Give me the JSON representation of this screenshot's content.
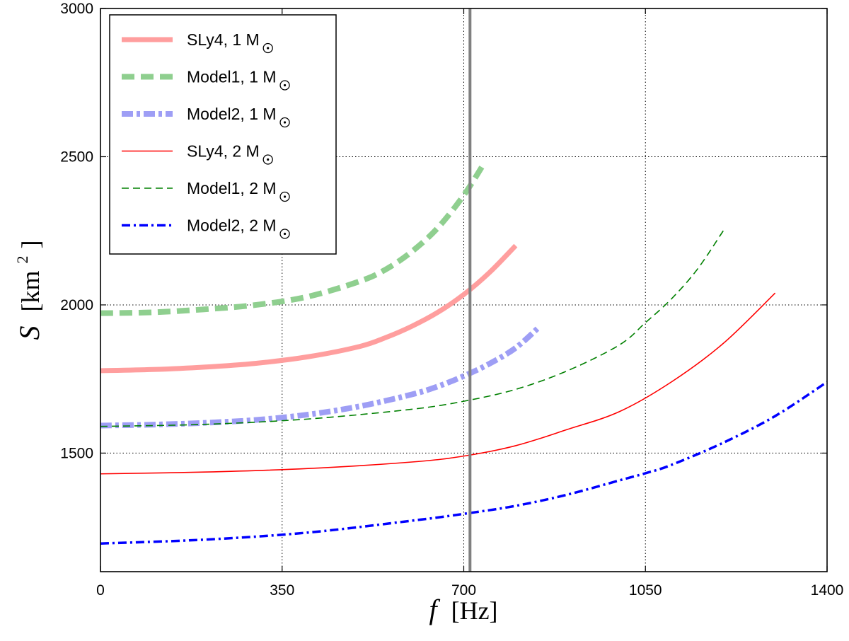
{
  "chart_data": {
    "type": "line",
    "xlabel": "f [Hz]",
    "ylabel": "S [km2]",
    "xlabel_parts": {
      "symbol": "f",
      "unit": "[Hz]"
    },
    "ylabel_parts": {
      "symbol": "S",
      "open": "[km",
      "exp": "2",
      "close": "]"
    },
    "xlim": [
      0,
      1400
    ],
    "ylim": [
      1100,
      3000
    ],
    "xticks": [
      0,
      350,
      700,
      1050,
      1400
    ],
    "yticks": [
      1500,
      2000,
      2500,
      3000
    ],
    "xtick_labels": [
      "0",
      "350",
      "700",
      "1050",
      "1400"
    ],
    "ytick_labels": [
      "1500",
      "2000",
      "2500",
      "3000"
    ],
    "grid": true,
    "legend_position": "top-left",
    "vline": {
      "x": 712,
      "color": "#808080"
    },
    "series": [
      {
        "name": "SLy4, 1 M⊙",
        "label": "SLy4, 1 M",
        "color": "#ff9e9e",
        "style": "thick-solid",
        "x": [
          0,
          100,
          200,
          300,
          400,
          500,
          550,
          600,
          650,
          700,
          750,
          800
        ],
        "y": [
          1778,
          1782,
          1790,
          1803,
          1825,
          1860,
          1890,
          1928,
          1975,
          2035,
          2110,
          2200
        ]
      },
      {
        "name": "Model1, 1 M⊙",
        "label": "Model1, 1 M",
        "color": "#8fcf8f",
        "style": "thick-dashed",
        "x": [
          0,
          100,
          200,
          300,
          400,
          500,
          550,
          600,
          650,
          700,
          740
        ],
        "y": [
          1972,
          1975,
          1985,
          2000,
          2028,
          2080,
          2120,
          2180,
          2260,
          2370,
          2480
        ]
      },
      {
        "name": "Model2, 1 M⊙",
        "label": "Model2, 1 M",
        "color": "#9e9ef5",
        "style": "thick-dashdot",
        "x": [
          0,
          100,
          200,
          300,
          400,
          500,
          600,
          650,
          700,
          750,
          800,
          845
        ],
        "y": [
          1593,
          1596,
          1602,
          1612,
          1630,
          1658,
          1698,
          1725,
          1760,
          1802,
          1855,
          1925
        ]
      },
      {
        "name": "SLy4, 2 M⊙",
        "label": "SLy4, 2 M",
        "color": "#ff0000",
        "style": "thin-solid",
        "x": [
          0,
          200,
          400,
          600,
          700,
          800,
          900,
          1000,
          1100,
          1200,
          1300
        ],
        "y": [
          1430,
          1436,
          1448,
          1470,
          1490,
          1525,
          1580,
          1640,
          1740,
          1870,
          2040
        ]
      },
      {
        "name": "Model1, 2 M⊙",
        "label": "Model1, 2 M",
        "color": "#008000",
        "style": "thin-dashed",
        "x": [
          0,
          200,
          400,
          600,
          700,
          800,
          900,
          1000,
          1050,
          1100,
          1150,
          1200
        ],
        "y": [
          1590,
          1597,
          1615,
          1648,
          1675,
          1715,
          1778,
          1865,
          1940,
          2020,
          2120,
          2250
        ]
      },
      {
        "name": "Model2, 2 M⊙",
        "label": "Model2, 2 M",
        "color": "#0000ff",
        "style": "thick-dashdot-blue",
        "x": [
          0,
          200,
          400,
          600,
          700,
          800,
          900,
          1000,
          1050,
          1100,
          1200,
          1300,
          1400
        ],
        "y": [
          1195,
          1208,
          1232,
          1272,
          1295,
          1322,
          1360,
          1408,
          1432,
          1460,
          1535,
          1625,
          1740
        ]
      }
    ]
  }
}
